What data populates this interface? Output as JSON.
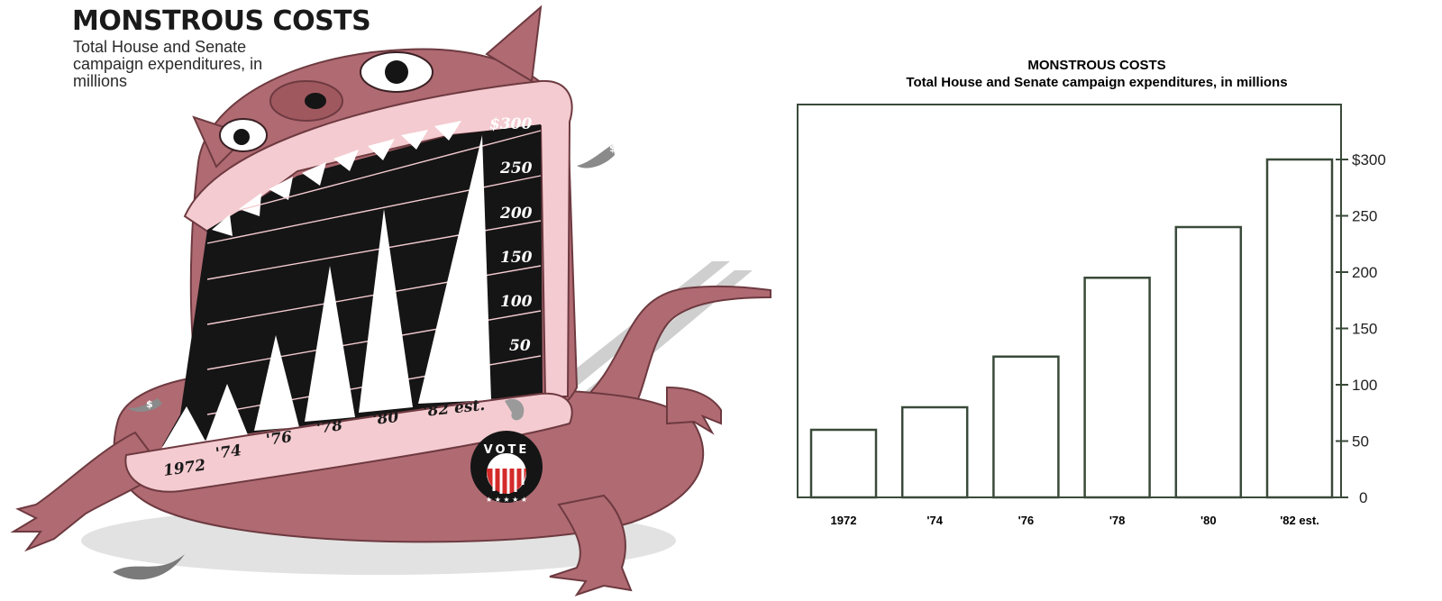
{
  "left_illustration": {
    "title": "MONSTROUS COSTS",
    "subtitle": "Total House and Senate campaign expenditures, in millions",
    "tick_labels": [
      "$300",
      "250",
      "200",
      "150",
      "100",
      "50"
    ],
    "category_labels": [
      "1972",
      "'74",
      "'76",
      "'78",
      "'80",
      "'82 est."
    ],
    "badge_text": "VOTE",
    "dollar_sign": "$",
    "colors": {
      "monster_skin": "#b06a72",
      "monster_dark": "#8a4a52",
      "lip": "#f4cbd0",
      "mouth": "#151515",
      "tooth": "#ffffff",
      "shadow": "#d8d8d8"
    }
  },
  "chart_data": {
    "type": "bar",
    "title": "MONSTROUS COSTS",
    "subtitle": "Total House and Senate campaign expenditures, in millions",
    "categories": [
      "1972",
      "'74",
      "'76",
      "'78",
      "'80",
      "'82 est."
    ],
    "values": [
      60,
      80,
      125,
      195,
      240,
      300
    ],
    "ylim": [
      0,
      350
    ],
    "yticks": [
      0,
      50,
      100,
      150,
      200,
      250,
      300
    ],
    "ytick_labels": [
      "0",
      "50",
      "100",
      "150",
      "200",
      "250",
      "$300"
    ],
    "yaxis_position": "right",
    "grid": false,
    "colors": {
      "bar_fill": "#ffffff",
      "bar_stroke": "#3a4a3a",
      "axis": "#3a4a3a"
    }
  }
}
